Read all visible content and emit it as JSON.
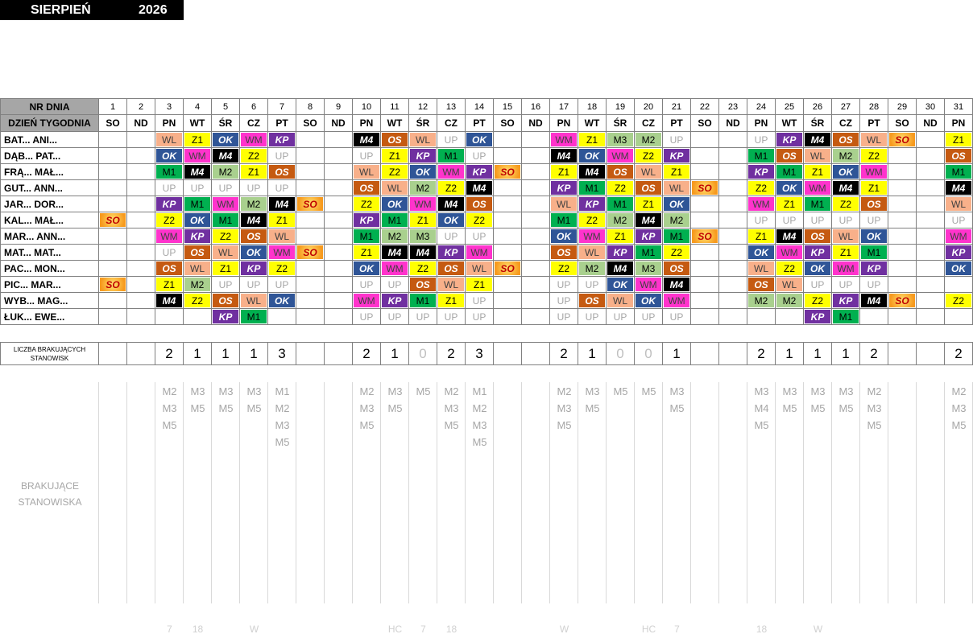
{
  "header": {
    "month": "SIERPIEŃ",
    "year": "2026"
  },
  "table": {
    "day_number_label": "NR DNIA",
    "weekday_label": "DZIEŃ TYGODNIA",
    "days": [
      1,
      2,
      3,
      4,
      5,
      6,
      7,
      8,
      9,
      10,
      11,
      12,
      13,
      14,
      15,
      16,
      17,
      18,
      19,
      20,
      21,
      22,
      23,
      24,
      25,
      26,
      27,
      28,
      29,
      30,
      31
    ],
    "weekdays": [
      "SO",
      "ND",
      "PN",
      "WT",
      "ŚR",
      "CZ",
      "PT",
      "SO",
      "ND",
      "PN",
      "WT",
      "ŚR",
      "CZ",
      "PT",
      "SO",
      "ND",
      "PN",
      "WT",
      "ŚR",
      "CZ",
      "PT",
      "SO",
      "ND",
      "PN",
      "WT",
      "ŚR",
      "CZ",
      "PT",
      "SO",
      "ND",
      "PN"
    ],
    "rows": [
      {
        "name": "BAT... ANI...",
        "shifts": [
          null,
          null,
          "WL",
          "Z1",
          "OK",
          "WM",
          "KP",
          null,
          null,
          "M4",
          "OS",
          "WL",
          "UP",
          "OK",
          null,
          null,
          "WM",
          "Z1",
          "M3",
          "M2",
          "UP",
          null,
          null,
          "UP",
          "KP",
          "M4",
          "OS",
          "WL",
          "SO",
          null,
          "Z1"
        ]
      },
      {
        "name": "DĄB... PAT...",
        "shifts": [
          null,
          null,
          "OK",
          "WM",
          "M4",
          "Z2",
          "UP",
          null,
          null,
          "UP",
          "Z1",
          "KP",
          "M1",
          "UP",
          null,
          null,
          "M4",
          "OK",
          "WM",
          "Z2",
          "KP",
          null,
          null,
          "M1",
          "OS",
          "WL",
          "M2",
          "Z2",
          null,
          null,
          "OS"
        ]
      },
      {
        "name": "FRĄ... MAŁ...",
        "shifts": [
          null,
          null,
          "M1",
          "M4",
          "M2",
          "Z1",
          "OS",
          null,
          null,
          "WL",
          "Z2",
          "OK",
          "WM",
          "KP",
          "SO",
          null,
          "Z1",
          "M4",
          "OS",
          "WL",
          "Z1",
          null,
          null,
          "KP",
          "M1",
          "Z1",
          "OK",
          "WM",
          null,
          null,
          "M1"
        ]
      },
      {
        "name": "GUT... ANN...",
        "shifts": [
          null,
          null,
          "UP",
          "UP",
          "UP",
          "UP",
          "UP",
          null,
          null,
          "OS",
          "WL",
          "M2",
          "Z2",
          "M4",
          null,
          null,
          "KP",
          "M1",
          "Z2",
          "OS",
          "WL",
          "SO",
          null,
          "Z2",
          "OK",
          "WM",
          "M4",
          "Z1",
          null,
          null,
          "M4"
        ]
      },
      {
        "name": "JAR... DOR...",
        "shifts": [
          null,
          null,
          "KP",
          "M1",
          "WM",
          "M2",
          "M4",
          "SO",
          null,
          "Z2",
          "OK",
          "WM",
          "M4",
          "OS",
          null,
          null,
          "WL",
          "KP",
          "M1",
          "Z1",
          "OK",
          null,
          null,
          "WM",
          "Z1",
          "M1",
          "Z2",
          "OS",
          null,
          null,
          "WL"
        ]
      },
      {
        "name": "KAL... MAŁ...",
        "shifts": [
          "SO",
          null,
          "Z2",
          "OK",
          "M1",
          "M4",
          "Z1",
          null,
          null,
          "KP",
          "M1",
          "Z1",
          "OK",
          "Z2",
          null,
          null,
          "M1",
          "Z2",
          "M2",
          "M4",
          "M2",
          null,
          null,
          "UP",
          "UP",
          "UP",
          "UP",
          "UP",
          null,
          null,
          "UP"
        ]
      },
      {
        "name": "MAR... ANN...",
        "shifts": [
          null,
          null,
          "WM",
          "KP",
          "Z2",
          "OS",
          "WL",
          null,
          null,
          "M1",
          "M2",
          "M3",
          "UP",
          "UP",
          null,
          null,
          "OK",
          "WM",
          "Z1",
          "KP",
          "M1",
          "SO",
          null,
          "Z1",
          "M4",
          "OS",
          "WL",
          "OK",
          null,
          null,
          "WM"
        ]
      },
      {
        "name": "MAT... MAT...",
        "shifts": [
          null,
          null,
          "UP",
          "OS",
          "WL",
          "OK",
          "WM",
          "SO",
          null,
          "Z1",
          "M4",
          "M4",
          "KP",
          "WM",
          null,
          null,
          "OS",
          "WL",
          "KP",
          "M1",
          "Z2",
          null,
          null,
          "OK",
          "WM",
          "KP",
          "Z1",
          "M1",
          null,
          null,
          "KP"
        ]
      },
      {
        "name": "PAC... MON...",
        "shifts": [
          null,
          null,
          "OS",
          "WL",
          "Z1",
          "KP",
          "Z2",
          null,
          null,
          "OK",
          "WM",
          "Z2",
          "OS",
          "WL",
          "SO",
          null,
          "Z2",
          "M2",
          "M4",
          "M3",
          "OS",
          null,
          null,
          "WL",
          "Z2",
          "OK",
          "WM",
          "KP",
          null,
          null,
          "OK"
        ]
      },
      {
        "name": "PIC... MAR...",
        "shifts": [
          "SO",
          null,
          "Z1",
          "M2",
          "UP",
          "UP",
          "UP",
          null,
          null,
          "UP",
          "UP",
          "OS",
          "WL",
          "Z1",
          null,
          null,
          "UP",
          "UP",
          "OK",
          "WM",
          "M4",
          null,
          null,
          "OS",
          "WL",
          "UP",
          "UP",
          "UP",
          null,
          null,
          null
        ]
      },
      {
        "name": "WYB... MAG...",
        "shifts": [
          null,
          null,
          "M4",
          "Z2",
          "OS",
          "WL",
          "OK",
          null,
          null,
          "WM",
          "KP",
          "M1",
          "Z1",
          "UP",
          null,
          null,
          "UP",
          "OS",
          "WL",
          "OK",
          "WM",
          null,
          null,
          "M2",
          "M2",
          "Z2",
          "KP",
          "M4",
          "SO",
          null,
          "Z2"
        ]
      },
      {
        "name": "ŁUK... EWE...",
        "shifts": [
          null,
          null,
          null,
          null,
          "KP",
          "M1",
          null,
          null,
          null,
          "UP",
          "UP",
          "UP",
          "UP",
          "UP",
          null,
          null,
          "UP",
          "UP",
          "UP",
          "UP",
          "UP",
          null,
          null,
          null,
          null,
          "KP",
          "M1",
          null,
          null,
          null,
          null
        ]
      }
    ]
  },
  "missing_count": {
    "label": "LICZBA BRAKUJĄCYCH STANOWISK",
    "values": [
      null,
      null,
      2,
      1,
      1,
      1,
      3,
      null,
      null,
      2,
      1,
      0,
      2,
      3,
      null,
      null,
      2,
      1,
      0,
      0,
      1,
      null,
      null,
      2,
      1,
      1,
      1,
      2,
      null,
      null,
      2
    ]
  },
  "missing_stations": {
    "label": "BRAKUJĄCE STANOWISKA",
    "lists": [
      [],
      [],
      [
        "M2",
        "M3",
        "M5"
      ],
      [
        "M3",
        "M5"
      ],
      [
        "M3",
        "M5"
      ],
      [
        "M3",
        "M5"
      ],
      [
        "M1",
        "M2",
        "M3",
        "M5"
      ],
      [],
      [],
      [
        "M2",
        "M3",
        "M5"
      ],
      [
        "M3",
        "M5"
      ],
      [
        "M5"
      ],
      [
        "M2",
        "M3",
        "M5"
      ],
      [
        "M1",
        "M2",
        "M3",
        "M5"
      ],
      [],
      [],
      [
        "M2",
        "M3",
        "M5"
      ],
      [
        "M3",
        "M5"
      ],
      [
        "M5"
      ],
      [
        "M5"
      ],
      [
        "M3",
        "M5"
      ],
      [],
      [],
      [
        "M3",
        "M4",
        "M5"
      ],
      [
        "M3",
        "M5"
      ],
      [
        "M3",
        "M5"
      ],
      [
        "M3",
        "M5"
      ],
      [
        "M2",
        "M3",
        "M5"
      ],
      [],
      [],
      [
        "M2",
        "M3",
        "M5"
      ]
    ]
  },
  "footer_notes": [
    null,
    null,
    "7",
    "18",
    null,
    "W",
    null,
    null,
    null,
    null,
    "HC",
    "7",
    "18",
    null,
    null,
    null,
    "W",
    null,
    null,
    "HC",
    "7",
    null,
    null,
    "18",
    null,
    "W",
    null,
    null,
    null,
    null,
    null
  ],
  "code_colors": {
    "WL": {
      "bg": "#f8b08a",
      "fg": "#404040"
    },
    "Z1": {
      "bg": "#ffff00",
      "fg": "#000000"
    },
    "Z2": {
      "bg": "#ffff00",
      "fg": "#000000"
    },
    "OK": {
      "bg": "#2f5597",
      "fg": "#ffffff",
      "strong": true
    },
    "WM": {
      "bg": "#ff33cc",
      "fg": "#404040"
    },
    "KP": {
      "bg": "#7030a0",
      "fg": "#ffffff",
      "strong": true
    },
    "M4": {
      "bg": "#000000",
      "fg": "#ffffff",
      "strong": true
    },
    "OS": {
      "bg": "#c55a11",
      "fg": "#ffffff",
      "strong": true
    },
    "UP": {
      "bg": "#ffffff",
      "fg": "#a6a6a6"
    },
    "M1": {
      "bg": "#00b050",
      "fg": "#000000"
    },
    "M2": {
      "bg": "#a9d08e",
      "fg": "#000000"
    },
    "M3": {
      "bg": "#a9d08e",
      "fg": "#000000"
    },
    "SO": {
      "bg": "#f79a1e",
      "fg": "#c00000",
      "strong": true
    }
  }
}
